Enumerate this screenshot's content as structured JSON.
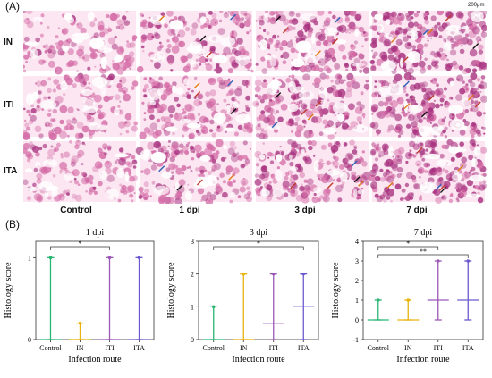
{
  "panel_a": {
    "label": "(A)",
    "scale_bar": "200μm",
    "row_labels": [
      "IN",
      "ITI",
      "ITA"
    ],
    "col_labels": [
      "Control",
      "1 dpi",
      "3 dpi",
      "7 dpi"
    ],
    "tile_colors": {
      "base": "#f2c6dc",
      "tissue": "#d46ba6",
      "dense": "#a8327f",
      "light": "#fbe6f1"
    }
  },
  "panel_b": {
    "label": "(B)",
    "ylabel": "Histology score",
    "xlabel": "Infection route"
  },
  "chart_data": [
    {
      "type": "scatter",
      "title": "1 dpi",
      "xlabel": "Infection route",
      "ylabel": "Histology score",
      "categories": [
        "Control",
        "IN",
        "ITI",
        "ITA"
      ],
      "ylim": [
        0,
        1.2
      ],
      "yticks": [
        0,
        1
      ],
      "medians": [
        0,
        0,
        0,
        0
      ],
      "min": [
        0,
        0,
        0,
        0
      ],
      "max": [
        1,
        0.2,
        1,
        1
      ],
      "significance": [
        {
          "from": "Control",
          "to": "ITI",
          "label": "*"
        }
      ]
    },
    {
      "type": "scatter",
      "title": "3 dpi",
      "xlabel": "Infection route",
      "ylabel": "Histology score",
      "categories": [
        "Control",
        "IN",
        "ITI",
        "ITA"
      ],
      "ylim": [
        0,
        3
      ],
      "yticks": [
        0,
        1,
        2,
        3
      ],
      "medians": [
        0,
        0,
        0.5,
        1
      ],
      "min": [
        0,
        0,
        0,
        0
      ],
      "max": [
        1,
        2,
        2,
        2
      ],
      "significance": [
        {
          "from": "Control",
          "to": "ITA",
          "label": "*"
        }
      ]
    },
    {
      "type": "scatter",
      "title": "7 dpi",
      "xlabel": "Infection route",
      "ylabel": "Histology score",
      "categories": [
        "Control",
        "IN",
        "ITI",
        "ITA"
      ],
      "ylim": [
        -1,
        4
      ],
      "yticks": [
        -1,
        0,
        1,
        2,
        3,
        4
      ],
      "medians": [
        0,
        0,
        1,
        1
      ],
      "min": [
        0,
        0,
        0,
        0
      ],
      "max": [
        1,
        1,
        3,
        3
      ],
      "significance": [
        {
          "from": "Control",
          "to": "ITI",
          "label": "*"
        },
        {
          "from": "Control",
          "to": "ITA",
          "label": "**"
        }
      ]
    }
  ]
}
